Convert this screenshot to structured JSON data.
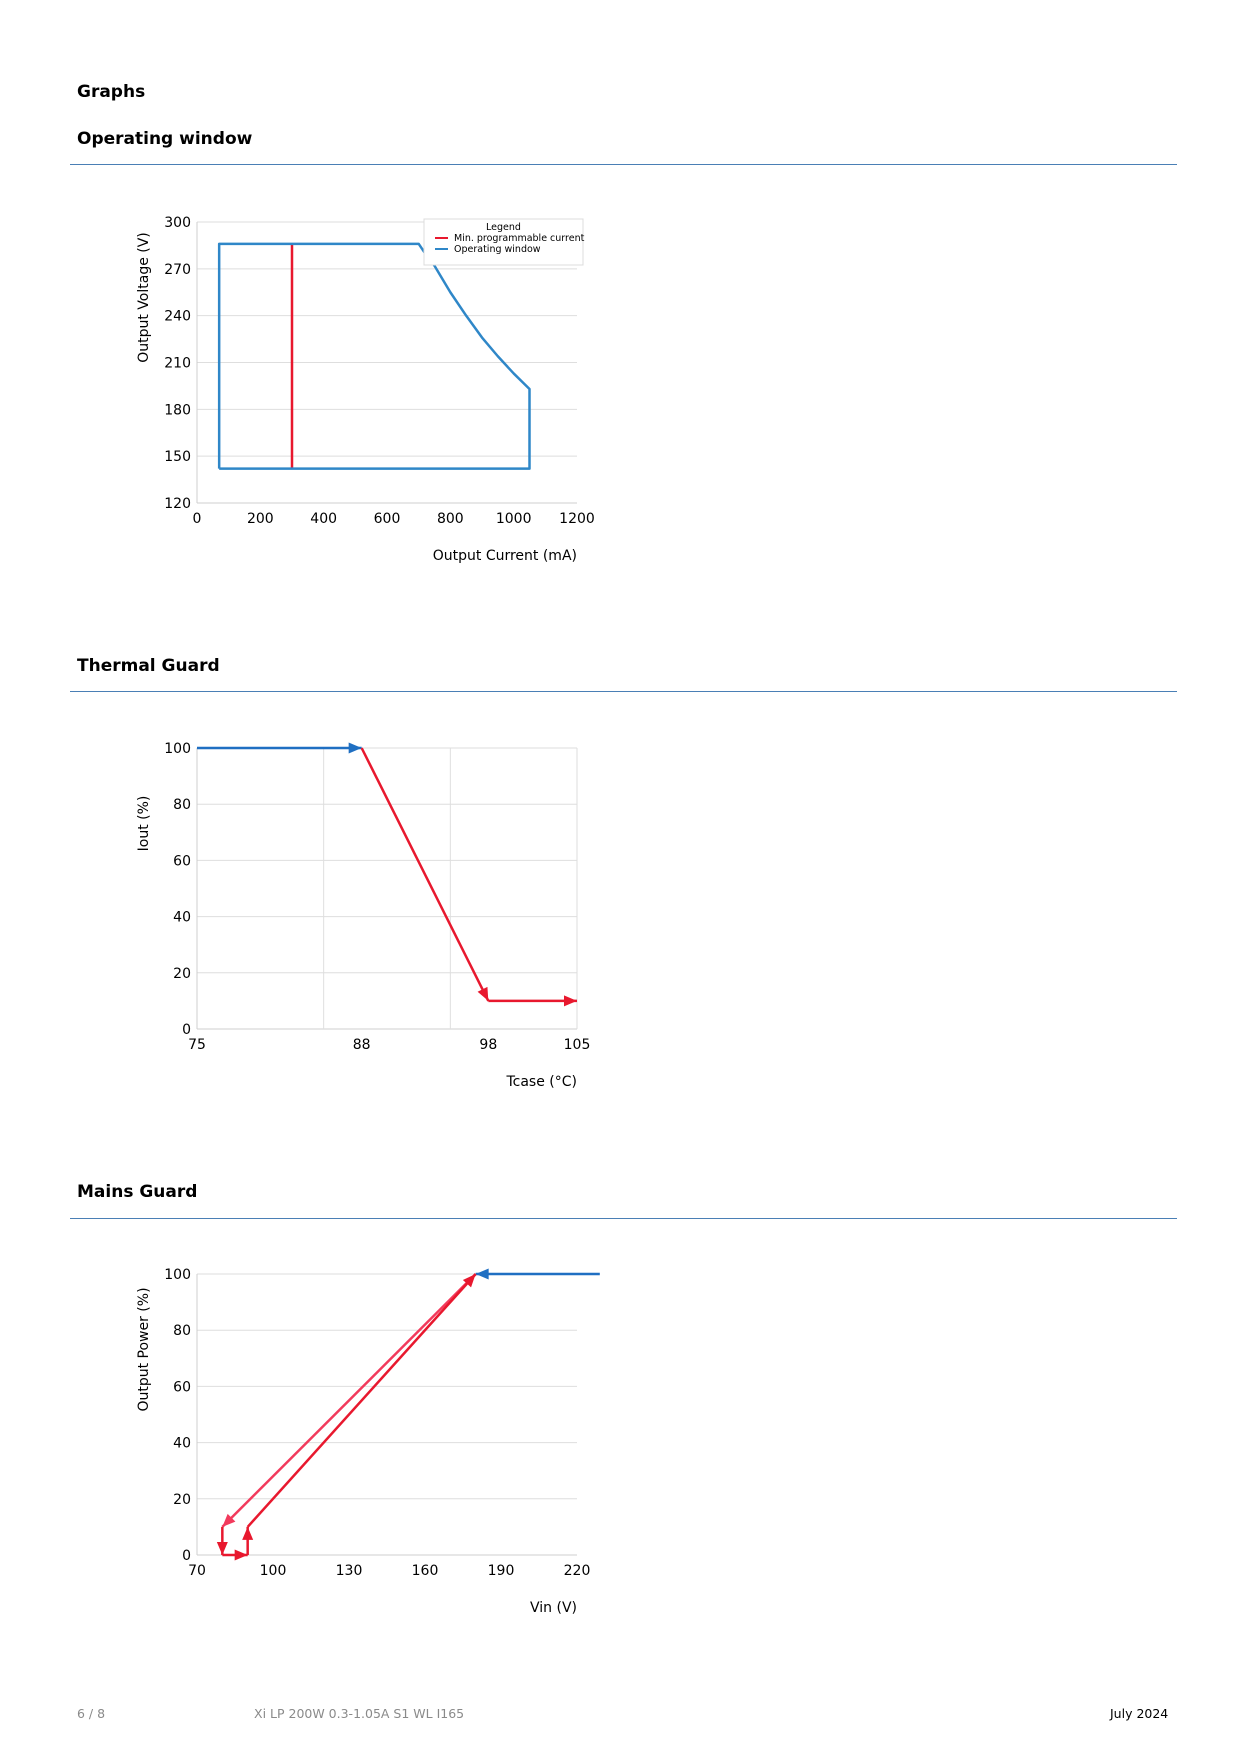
{
  "page": {
    "heading": "Graphs",
    "footer": {
      "page_number": "6 / 8",
      "product": "Xi LP 200W 0.3-1.05A S1 WL I165",
      "date": "July 2024"
    }
  },
  "colors": {
    "blue": "#2f87c8",
    "arrow_blue": "#1f6fc2",
    "red": "#e8182e",
    "pink": "#f23a5c",
    "grid": "#dedede",
    "rule": "#4a7fb5"
  },
  "chart_data": [
    {
      "id": "operating-window",
      "section_title": "Operating window",
      "type": "line",
      "xlabel": "Output Current (mA)",
      "ylabel": "Output Voltage (V)",
      "xlim": [
        0,
        1200
      ],
      "ylim": [
        120,
        300
      ],
      "xticks": [
        0,
        200,
        400,
        600,
        800,
        1000,
        1200
      ],
      "yticks": [
        120,
        150,
        180,
        210,
        240,
        270,
        300
      ],
      "grid": "horizontal",
      "legend": {
        "title": "Legend",
        "placement": "top-right",
        "items": [
          "Min. programmable current",
          "Operating window"
        ]
      },
      "series": [
        {
          "name": "Min. programmable current",
          "color": "#e8182e",
          "points": [
            [
              300,
              142
            ],
            [
              300,
              286
            ]
          ]
        },
        {
          "name": "Operating window",
          "color": "#2f87c8",
          "points": [
            [
              70,
              142
            ],
            [
              70,
              286
            ],
            [
              700,
              286
            ],
            [
              720,
              280
            ],
            [
              750,
              272
            ],
            [
              800,
              255
            ],
            [
              850,
              240
            ],
            [
              900,
              226
            ],
            [
              950,
              214
            ],
            [
              1000,
              203
            ],
            [
              1050,
              193
            ],
            [
              1050,
              142
            ],
            [
              70,
              142
            ]
          ]
        }
      ]
    },
    {
      "id": "thermal-guard",
      "section_title": "Thermal Guard",
      "type": "line",
      "xlabel": "Tcase (°C)",
      "ylabel": "Iout (%)",
      "xlim": [
        75,
        105
      ],
      "ylim": [
        0,
        100
      ],
      "xticks": [
        75,
        88,
        98,
        105
      ],
      "yticks": [
        0,
        20,
        40,
        60,
        80,
        100
      ],
      "grid": "both",
      "vgrid_x": [
        85,
        95
      ],
      "segments": [
        {
          "color": "#1f6fc2",
          "points": [
            [
              75,
              100
            ],
            [
              88,
              100
            ]
          ],
          "arrow": "end"
        },
        {
          "color": "#e8182e",
          "points": [
            [
              88,
              100
            ],
            [
              98,
              10
            ]
          ],
          "arrow": "end"
        },
        {
          "color": "#e8182e",
          "points": [
            [
              98,
              10
            ],
            [
              105,
              10
            ]
          ],
          "arrow": "end"
        }
      ]
    },
    {
      "id": "mains-guard",
      "section_title": "Mains Guard",
      "type": "line",
      "xlabel": "Vin (V)",
      "ylabel": "Output Power (%)",
      "xlim": [
        70,
        220
      ],
      "ylim": [
        0,
        100
      ],
      "xticks": [
        70,
        100,
        130,
        160,
        190,
        220
      ],
      "yticks": [
        0,
        20,
        40,
        60,
        80,
        100
      ],
      "grid": "horizontal",
      "segments": [
        {
          "color": "#1f6fc2",
          "points": [
            [
              229,
              100
            ],
            [
              180,
              100
            ]
          ],
          "arrow": "end"
        },
        {
          "color": "#f23a5c",
          "points": [
            [
              180,
              100
            ],
            [
              80,
              10
            ]
          ],
          "arrow": "end"
        },
        {
          "color": "#e8182e",
          "points": [
            [
              80,
              10
            ],
            [
              80,
              0
            ]
          ],
          "arrow": "end"
        },
        {
          "color": "#e8182e",
          "points": [
            [
              80,
              0
            ],
            [
              90,
              0
            ]
          ],
          "arrow": "end"
        },
        {
          "color": "#e8182e",
          "points": [
            [
              90,
              0
            ],
            [
              90,
              10
            ]
          ],
          "arrow": "end"
        },
        {
          "color": "#e8182e",
          "points": [
            [
              90,
              10
            ],
            [
              180,
              100
            ]
          ],
          "arrow": "end"
        }
      ]
    }
  ]
}
